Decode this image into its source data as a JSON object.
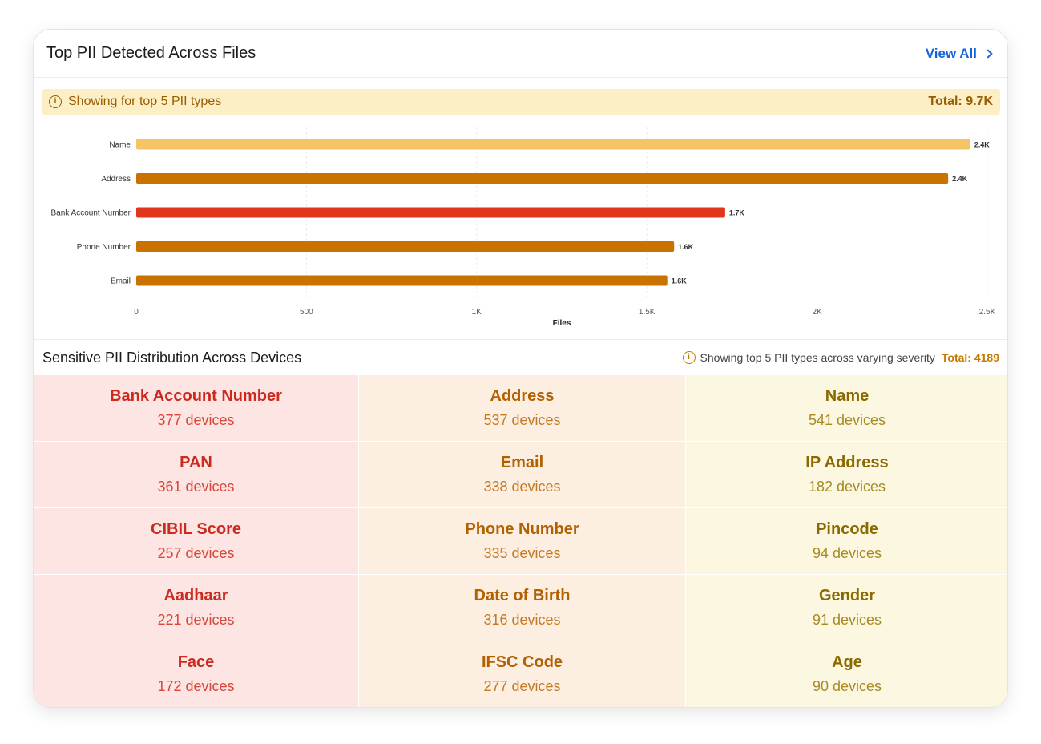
{
  "header": {
    "title": "Top PII Detected Across Files",
    "view_all": "View All"
  },
  "banner": {
    "text": "Showing for top 5 PII types",
    "total": "Total: 9.7K"
  },
  "chart_data": {
    "type": "bar",
    "orientation": "horizontal",
    "categories": [
      "Name",
      "Address",
      "Bank Account Number",
      "Phone Number",
      "Email"
    ],
    "values": [
      2450,
      2385,
      1730,
      1580,
      1560
    ],
    "data_labels": [
      "2.4K",
      "2.4K",
      "1.7K",
      "1.6K",
      "1.6K"
    ],
    "colors": [
      "#f5c565",
      "#c97200",
      "#e1361c",
      "#c97200",
      "#c97200"
    ],
    "xlabel": "Files",
    "ylabel": "",
    "xlim": [
      0,
      2500
    ],
    "xticks": [
      0,
      500,
      1000,
      1500,
      2000,
      2500
    ],
    "xtick_labels": [
      "0",
      "500",
      "1K",
      "1.5K",
      "2K",
      "2.5K"
    ],
    "grid": "vertical"
  },
  "distribution": {
    "title": "Sensitive PII Distribution Across Devices",
    "note": "Showing top 5 PII types across varying severity",
    "total": "Total: 4189",
    "rows": [
      [
        {
          "name": "Bank Account Number",
          "count": "377 devices",
          "sev": "high"
        },
        {
          "name": "Address",
          "count": "537 devices",
          "sev": "med"
        },
        {
          "name": "Name",
          "count": "541 devices",
          "sev": "low"
        }
      ],
      [
        {
          "name": "PAN",
          "count": "361 devices",
          "sev": "high"
        },
        {
          "name": "Email",
          "count": "338 devices",
          "sev": "med"
        },
        {
          "name": "IP Address",
          "count": "182 devices",
          "sev": "low"
        }
      ],
      [
        {
          "name": "CIBIL Score",
          "count": "257 devices",
          "sev": "high"
        },
        {
          "name": "Phone Number",
          "count": "335 devices",
          "sev": "med"
        },
        {
          "name": "Pincode",
          "count": "94 devices",
          "sev": "low"
        }
      ],
      [
        {
          "name": "Aadhaar",
          "count": "221 devices",
          "sev": "high"
        },
        {
          "name": "Date of Birth",
          "count": "316 devices",
          "sev": "med"
        },
        {
          "name": "Gender",
          "count": "91 devices",
          "sev": "low"
        }
      ],
      [
        {
          "name": "Face",
          "count": "172 devices",
          "sev": "high"
        },
        {
          "name": "IFSC Code",
          "count": "277 devices",
          "sev": "med"
        },
        {
          "name": "Age",
          "count": "90 devices",
          "sev": "low"
        }
      ]
    ]
  }
}
